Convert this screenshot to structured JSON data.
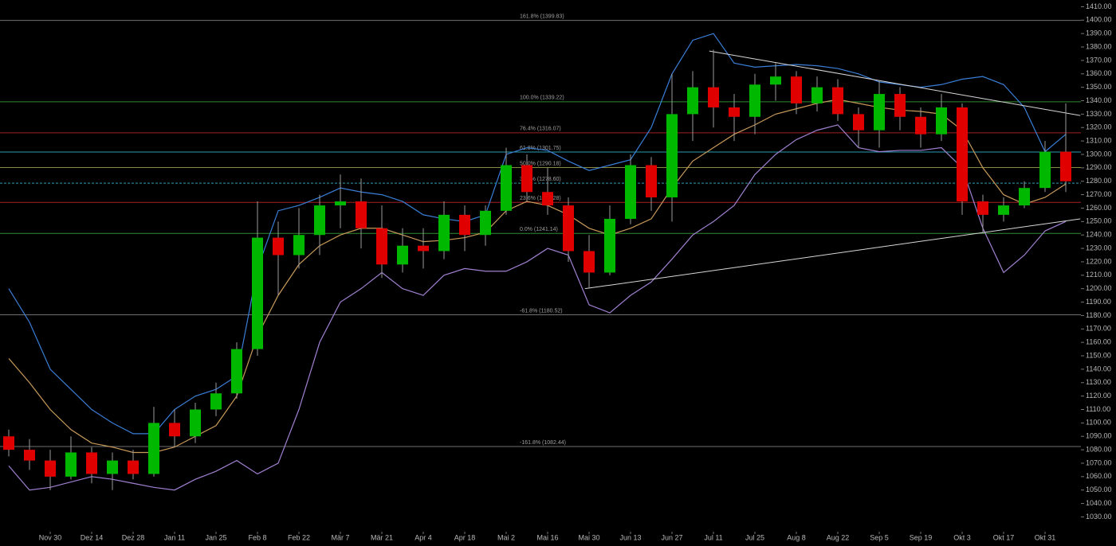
{
  "chart_data": {
    "type": "candlestick",
    "categories": [
      null,
      null,
      "Nov 30",
      null,
      "Dez 14",
      null,
      "Dez 28",
      null,
      "Jan 11",
      null,
      "Jan 25",
      null,
      "Feb 8",
      null,
      "Feb 22",
      null,
      "Mär 7",
      null,
      "Mär 21",
      null,
      "Apr 4",
      null,
      "Apr 18",
      null,
      "Mai 2",
      null,
      "Mai 16",
      null,
      "Mai 30",
      null,
      "Jun 13",
      null,
      "Jun 27",
      null,
      "Jul 11",
      null,
      "Jul 25",
      null,
      "Aug 8",
      null,
      "Aug 22",
      null,
      "Sep 5",
      null,
      "Sep 19",
      null,
      "Okt 3",
      null,
      "Okt 17",
      null,
      "Okt 31",
      null
    ],
    "open": [
      1090,
      1080,
      1072,
      1060,
      1078,
      1062,
      1072,
      1062,
      1100,
      1090,
      1110,
      1122,
      1155,
      1238,
      1225,
      1240,
      1262,
      1265,
      1245,
      1218,
      1232,
      1228,
      1255,
      1240,
      1258,
      1292,
      1272,
      1262,
      1228,
      1212,
      1252,
      1292,
      1268,
      1330,
      1350,
      1335,
      1328,
      1352,
      1358,
      1338,
      1350,
      1330,
      1318,
      1345,
      1328,
      1315,
      1335,
      1265,
      1255,
      1262,
      1275,
      1302
    ],
    "high": [
      1095,
      1088,
      1080,
      1090,
      1082,
      1078,
      1080,
      1112,
      1110,
      1115,
      1130,
      1160,
      1265,
      1250,
      1260,
      1270,
      1285,
      1282,
      1262,
      1245,
      1245,
      1265,
      1262,
      1262,
      1305,
      1300,
      1290,
      1268,
      1240,
      1262,
      1300,
      1298,
      1360,
      1362,
      1378,
      1345,
      1360,
      1368,
      1362,
      1358,
      1356,
      1335,
      1355,
      1350,
      1335,
      1345,
      1338,
      1270,
      1268,
      1280,
      1310,
      1338
    ],
    "low": [
      1075,
      1065,
      1050,
      1058,
      1055,
      1050,
      1058,
      1060,
      1082,
      1085,
      1105,
      1118,
      1150,
      1195,
      1215,
      1225,
      1245,
      1230,
      1208,
      1212,
      1215,
      1222,
      1228,
      1232,
      1255,
      1265,
      1255,
      1220,
      1200,
      1210,
      1248,
      1258,
      1250,
      1310,
      1320,
      1310,
      1315,
      1340,
      1330,
      1332,
      1325,
      1305,
      1305,
      1318,
      1305,
      1310,
      1255,
      1242,
      1250,
      1260,
      1272,
      1272
    ],
    "close": [
      1080,
      1072,
      1060,
      1078,
      1062,
      1072,
      1062,
      1100,
      1090,
      1110,
      1122,
      1155,
      1238,
      1225,
      1240,
      1262,
      1265,
      1245,
      1218,
      1232,
      1228,
      1255,
      1240,
      1258,
      1292,
      1272,
      1262,
      1228,
      1212,
      1252,
      1292,
      1268,
      1330,
      1350,
      1335,
      1328,
      1352,
      1358,
      1338,
      1350,
      1330,
      1318,
      1345,
      1328,
      1315,
      1335,
      1265,
      1255,
      1262,
      1275,
      1302,
      1280
    ],
    "up_color": "#00b800",
    "down_color": "#e00000",
    "wick_color": "#9a9a9a",
    "overlays": [
      {
        "color": "#3a7ed6",
        "values": [
          1200,
          1175,
          1140,
          1125,
          1110,
          1100,
          1092,
          1092,
          1110,
          1120,
          1125,
          1135,
          1215,
          1258,
          1262,
          1268,
          1275,
          1272,
          1270,
          1265,
          1255,
          1252,
          1250,
          1255,
          1300,
          1305,
          1303,
          1295,
          1288,
          1292,
          1296,
          1320,
          1360,
          1385,
          1390,
          1368,
          1365,
          1366,
          1367,
          1366,
          1364,
          1360,
          1354,
          1352,
          1350,
          1352,
          1356,
          1358,
          1352,
          1335,
          1302,
          1315
        ]
      },
      {
        "color": "#c89a5a",
        "values": [
          1148,
          1130,
          1110,
          1095,
          1085,
          1082,
          1078,
          1078,
          1082,
          1090,
          1098,
          1120,
          1165,
          1195,
          1218,
          1232,
          1240,
          1245,
          1245,
          1240,
          1235,
          1236,
          1238,
          1242,
          1258,
          1265,
          1262,
          1255,
          1245,
          1240,
          1245,
          1252,
          1275,
          1295,
          1305,
          1315,
          1322,
          1330,
          1334,
          1338,
          1341,
          1338,
          1335,
          1333,
          1332,
          1330,
          1318,
          1290,
          1270,
          1263,
          1268,
          1278
        ]
      },
      {
        "color": "#a080d0",
        "values": [
          1068,
          1050,
          1052,
          1056,
          1060,
          1058,
          1055,
          1052,
          1050,
          1058,
          1064,
          1072,
          1062,
          1070,
          1110,
          1160,
          1190,
          1200,
          1212,
          1200,
          1195,
          1210,
          1215,
          1213,
          1213,
          1220,
          1230,
          1225,
          1188,
          1182,
          1195,
          1205,
          1222,
          1240,
          1250,
          1262,
          1285,
          1300,
          1311,
          1318,
          1322,
          1305,
          1302,
          1303,
          1303,
          1305,
          1290,
          1245,
          1212,
          1225,
          1243,
          1250
        ]
      }
    ],
    "fib_levels": [
      {
        "label": "161.8% (1399.83)",
        "value": 1399.83,
        "color": "#707070"
      },
      {
        "label": "100.0% (1339.22)",
        "value": 1339.22,
        "color": "#2f8a2f"
      },
      {
        "label": "76.4% (1316.07)",
        "value": 1316.07,
        "color": "#a02020"
      },
      {
        "label": "61.8% (1301.75)",
        "value": 1301.75,
        "color": "#2a9bb0"
      },
      {
        "label": "50.0% (1290.18)",
        "value": 1290.18,
        "color": "#8a8a40"
      },
      {
        "label": "38.2% (1278.60)",
        "value": 1278.6,
        "color": "#2a9bb0"
      },
      {
        "label": "23.6% (1264.28)",
        "value": 1264.28,
        "color": "#a02020"
      },
      {
        "label": "0.0% (1241.14)",
        "value": 1241.14,
        "color": "#2f8a2f"
      },
      {
        "label": "-61.8% (1180.52)",
        "value": 1180.52,
        "color": "#707070"
      },
      {
        "label": "-161.8% (1082.44)",
        "value": 1082.44,
        "color": "#707070"
      }
    ],
    "trendlines": [
      {
        "x": [
          33.8,
          51.7
        ],
        "y": [
          1377,
          1329
        ],
        "color": "#d8d8d8"
      },
      {
        "x": [
          27.8,
          51.7
        ],
        "y": [
          1200,
          1252
        ],
        "color": "#d8d8d8"
      }
    ],
    "ylim": [
      1019,
      1415
    ],
    "yticks": [
      {
        "value": 1030,
        "label": "1030.00"
      },
      {
        "value": 1040,
        "label": "1040.00"
      },
      {
        "value": 1050,
        "label": "1050.00"
      },
      {
        "value": 1060,
        "label": "1060.00"
      },
      {
        "value": 1070,
        "label": "1070.00"
      },
      {
        "value": 1080,
        "label": "1080.00"
      },
      {
        "value": 1090,
        "label": "1090.00"
      },
      {
        "value": 1100,
        "label": "1100.00"
      },
      {
        "value": 1110,
        "label": "1110.00"
      },
      {
        "value": 1120,
        "label": "1120.00"
      },
      {
        "value": 1130,
        "label": "1130.00"
      },
      {
        "value": 1140,
        "label": "1140.00"
      },
      {
        "value": 1150,
        "label": "1150.00"
      },
      {
        "value": 1160,
        "label": "1160.00"
      },
      {
        "value": 1170,
        "label": "1170.00"
      },
      {
        "value": 1180,
        "label": "1180.00"
      },
      {
        "value": 1190,
        "label": "1190.00"
      },
      {
        "value": 1200,
        "label": "1200.00"
      },
      {
        "value": 1210,
        "label": "1210.00"
      },
      {
        "value": 1220,
        "label": "1220.00"
      },
      {
        "value": 1230,
        "label": "1230.00"
      },
      {
        "value": 1240,
        "label": "1240.00"
      },
      {
        "value": 1250,
        "label": "1250.00"
      },
      {
        "value": 1260,
        "label": "1260.00"
      },
      {
        "value": 1270,
        "label": "1270.00"
      },
      {
        "value": 1280,
        "label": "1280.00"
      },
      {
        "value": 1290,
        "label": "1290.00"
      },
      {
        "value": 1300,
        "label": "1300.00"
      },
      {
        "value": 1310,
        "label": "1310.00"
      },
      {
        "value": 1320,
        "label": "1320.00"
      },
      {
        "value": 1330,
        "label": "1330.00"
      },
      {
        "value": 1340,
        "label": "1340.00"
      },
      {
        "value": 1350,
        "label": "1350.00"
      },
      {
        "value": 1360,
        "label": "1360.00"
      },
      {
        "value": 1370,
        "label": "1370.00"
      },
      {
        "value": 1380,
        "label": "1380.00"
      },
      {
        "value": 1390,
        "label": "1390.00"
      },
      {
        "value": 1400,
        "label": "1400.00"
      },
      {
        "value": 1410,
        "label": "1410.00"
      }
    ]
  }
}
